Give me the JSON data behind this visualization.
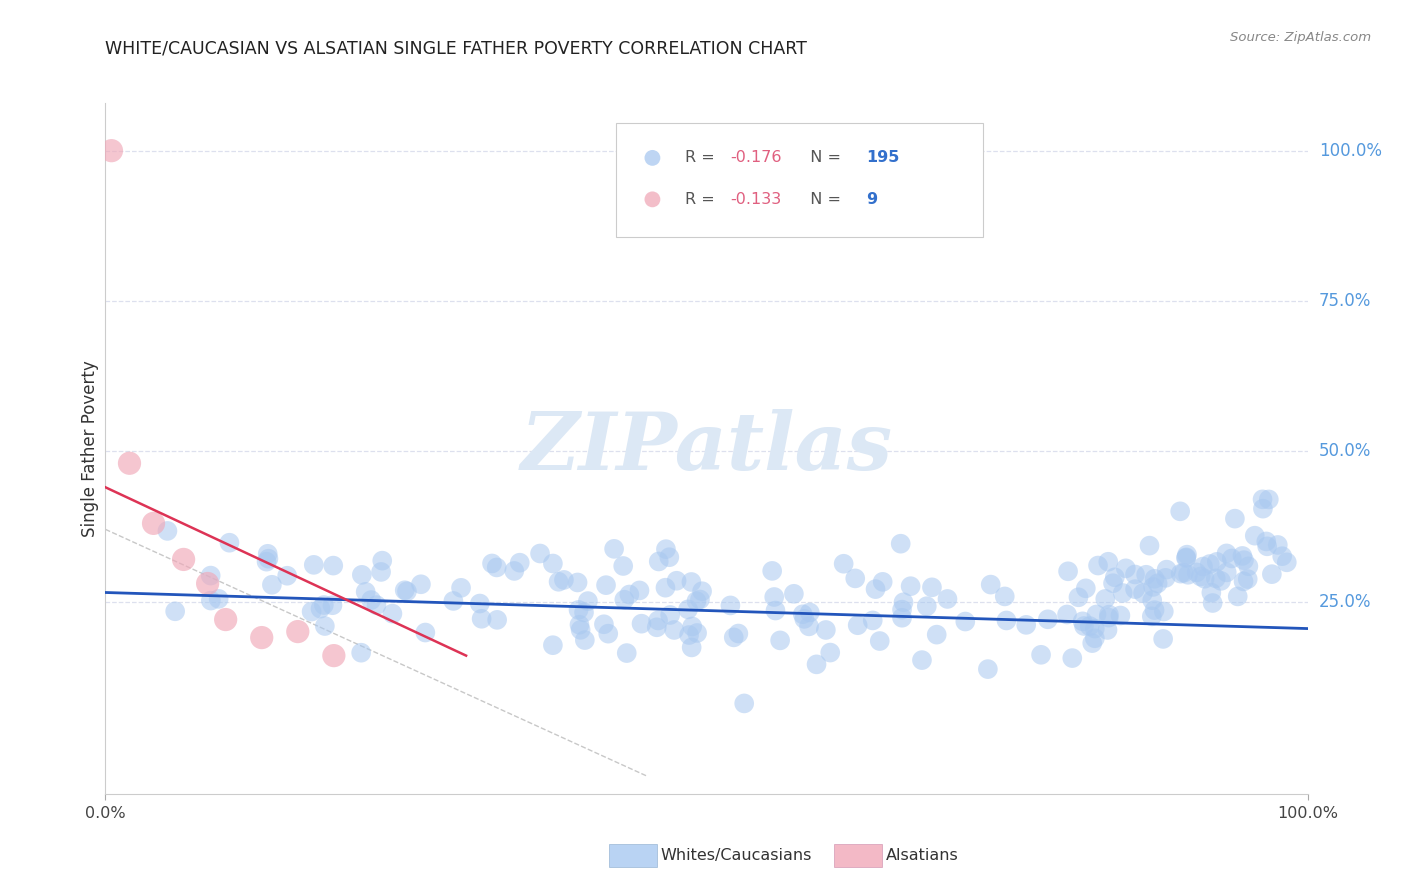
{
  "title": "WHITE/CAUCASIAN VS ALSATIAN SINGLE FATHER POVERTY CORRELATION CHART",
  "source": "Source: ZipAtlas.com",
  "ylabel": "Single Father Poverty",
  "ytick_values": [
    0.25,
    0.5,
    0.75,
    1.0
  ],
  "ytick_labels": [
    "25.0%",
    "50.0%",
    "75.0%",
    "100.0%"
  ],
  "blue_R": "-0.176",
  "blue_N": "195",
  "pink_R": "-0.133",
  "pink_N": "9",
  "blue_dot_color": "#a8c8f0",
  "pink_dot_color": "#f0a8b8",
  "trend_blue_color": "#2255bb",
  "trend_pink_color": "#dd3355",
  "trend_gray_color": "#c8c8c8",
  "right_label_color": "#5599dd",
  "watermark_color": "#dce8f5",
  "grid_color": "#dde0ee",
  "background": "#ffffff",
  "r_value_color": "#e06080",
  "n_value_color": "#3370cc"
}
